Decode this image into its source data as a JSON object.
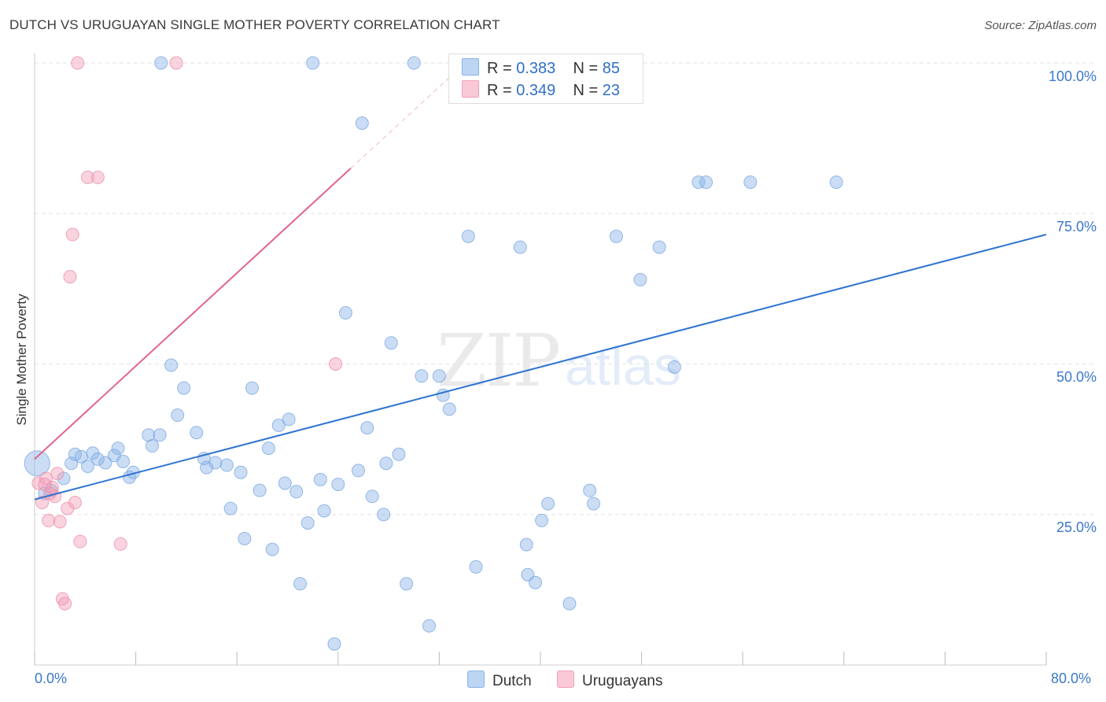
{
  "title": "DUTCH VS URUGUAYAN SINGLE MOTHER POVERTY CORRELATION CHART",
  "source": "Source: ZipAtlas.com",
  "watermark": {
    "zip": "ZIP",
    "atlas": "atlas"
  },
  "colors": {
    "dutch": "#8ab4e8",
    "dutch_line": "#2f74d0",
    "uruguayan": "#f2a0b8",
    "uruguayan_line": "#e0648c",
    "axis_text": "#3b78c9"
  },
  "legend": {
    "dutch": {
      "r_label": "R = ",
      "r_value": "0.383",
      "n_label": "N = ",
      "n_value": "85"
    },
    "uruguayan": {
      "r_label": "R = ",
      "r_value": "0.349",
      "n_label": "N = ",
      "n_value": "23"
    }
  },
  "chart_data": {
    "type": "scatter",
    "title": "DUTCH VS URUGUAYAN SINGLE MOTHER POVERTY CORRELATION CHART",
    "xlabel": "",
    "ylabel": "Single Mother Poverty",
    "xlim": [
      0,
      80
    ],
    "ylim": [
      0,
      100
    ],
    "x_tick_labels": [
      "0.0%",
      "80.0%"
    ],
    "y_tick_labels": [
      "25.0%",
      "50.0%",
      "75.0%",
      "100.0%"
    ],
    "y_ticks": [
      25,
      50,
      75,
      100
    ],
    "grid": true,
    "legend_position": "top-center",
    "series": [
      {
        "name": "Dutch",
        "color": "#8ab4e8",
        "trend": {
          "x": [
            0,
            80
          ],
          "y": [
            27.5,
            71.5
          ]
        },
        "points": [
          [
            0.2,
            33.5
          ],
          [
            0.8,
            28.5
          ],
          [
            1.3,
            29
          ],
          [
            2.3,
            31
          ],
          [
            2.9,
            33.5
          ],
          [
            3.2,
            35
          ],
          [
            3.7,
            34.6
          ],
          [
            4.2,
            33
          ],
          [
            4.6,
            35.2
          ],
          [
            5.0,
            34.2
          ],
          [
            5.6,
            33.6
          ],
          [
            6.3,
            34.8
          ],
          [
            6.6,
            36
          ],
          [
            7.0,
            33.8
          ],
          [
            7.5,
            31.2
          ],
          [
            7.8,
            32
          ],
          [
            9.0,
            38.2
          ],
          [
            9.3,
            36.4
          ],
          [
            9.9,
            38.2
          ],
          [
            10.8,
            49.8
          ],
          [
            11.3,
            41.5
          ],
          [
            11.8,
            46
          ],
          [
            12.8,
            38.6
          ],
          [
            13.4,
            34.3
          ],
          [
            13.6,
            32.8
          ],
          [
            14.3,
            33.6
          ],
          [
            15.2,
            33.2
          ],
          [
            15.5,
            26
          ],
          [
            16.3,
            32
          ],
          [
            16.6,
            21
          ],
          [
            17.2,
            46
          ],
          [
            17.8,
            29
          ],
          [
            18.5,
            36
          ],
          [
            18.8,
            19.2
          ],
          [
            19.3,
            39.8
          ],
          [
            19.8,
            30.2
          ],
          [
            20.1,
            40.8
          ],
          [
            20.7,
            28.8
          ],
          [
            21.0,
            13.5
          ],
          [
            21.6,
            23.6
          ],
          [
            22.0,
            100
          ],
          [
            22.6,
            30.8
          ],
          [
            22.9,
            25.6
          ],
          [
            23.7,
            3.5
          ],
          [
            24.0,
            30
          ],
          [
            24.6,
            58.5
          ],
          [
            25.6,
            32.3
          ],
          [
            25.9,
            90
          ],
          [
            26.3,
            39.4
          ],
          [
            26.7,
            28
          ],
          [
            27.6,
            25
          ],
          [
            27.8,
            33.5
          ],
          [
            28.2,
            53.5
          ],
          [
            28.8,
            35
          ],
          [
            29.4,
            13.5
          ],
          [
            30.6,
            48
          ],
          [
            31.2,
            6.5
          ],
          [
            32.0,
            48
          ],
          [
            32.3,
            44.8
          ],
          [
            32.8,
            42.5
          ],
          [
            34.3,
            71.2
          ],
          [
            34.9,
            16.3
          ],
          [
            36.2,
            100
          ],
          [
            38.4,
            69.4
          ],
          [
            38.9,
            20
          ],
          [
            39.0,
            15
          ],
          [
            39.6,
            13.7
          ],
          [
            40.1,
            24
          ],
          [
            40.6,
            26.8
          ],
          [
            42.3,
            10.2
          ],
          [
            43.9,
            29
          ],
          [
            44.2,
            26.8
          ],
          [
            46.0,
            71.2
          ],
          [
            47.9,
            64
          ],
          [
            49.4,
            69.4
          ],
          [
            50.6,
            49.5
          ],
          [
            52.5,
            80.2
          ],
          [
            53.1,
            80.2
          ],
          [
            56.6,
            80.2
          ],
          [
            63.4,
            80.2
          ],
          [
            36.8,
            100
          ],
          [
            35.0,
            100
          ],
          [
            38.0,
            100
          ],
          [
            30.0,
            100
          ],
          [
            10.0,
            100
          ]
        ]
      },
      {
        "name": "Uruguayans",
        "color": "#f2a0b8",
        "trend": {
          "x": [
            0,
            25
          ],
          "y": [
            34.2,
            82.5
          ]
        },
        "points": [
          [
            0.3,
            30.2
          ],
          [
            0.6,
            27
          ],
          [
            0.9,
            31
          ],
          [
            1.1,
            24
          ],
          [
            1.4,
            29.5
          ],
          [
            1.6,
            28
          ],
          [
            1.8,
            31.8
          ],
          [
            2.0,
            23.8
          ],
          [
            2.2,
            11
          ],
          [
            2.4,
            10.2
          ],
          [
            2.6,
            26
          ],
          [
            2.8,
            64.5
          ],
          [
            3.0,
            71.5
          ],
          [
            3.2,
            27
          ],
          [
            3.4,
            100
          ],
          [
            3.6,
            20.5
          ],
          [
            4.2,
            81
          ],
          [
            5.0,
            81
          ],
          [
            6.8,
            20.1
          ],
          [
            11.2,
            100
          ],
          [
            23.8,
            50
          ],
          [
            0.8,
            30
          ],
          [
            1.2,
            28.5
          ]
        ]
      }
    ]
  },
  "bottom_legend": {
    "dutch": "Dutch",
    "uruguayan": "Uruguayans"
  }
}
